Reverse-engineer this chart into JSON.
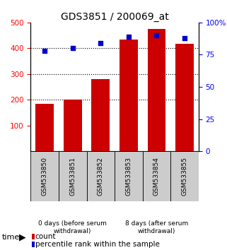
{
  "title": "GDS3851 / 200069_at",
  "samples": [
    "GSM533850",
    "GSM533851",
    "GSM533852",
    "GSM533853",
    "GSM533854",
    "GSM533855"
  ],
  "counts": [
    185,
    202,
    280,
    433,
    475,
    417
  ],
  "percentiles": [
    78,
    80,
    84,
    89,
    90,
    88
  ],
  "ylim_left": [
    0,
    500
  ],
  "ylim_right": [
    0,
    100
  ],
  "yticks_left": [
    100,
    200,
    300,
    400,
    500
  ],
  "yticks_right": [
    0,
    25,
    50,
    75,
    100
  ],
  "yticklabels_right": [
    "0",
    "25",
    "50",
    "75",
    "100%"
  ],
  "bar_color": "#cc0000",
  "dot_color": "#0000cc",
  "group1_label": "0 days (before serum\nwithdrawal)",
  "group2_label": "8 days (after serum\nwithdrawal)",
  "group1_color": "#ccffcc",
  "group2_color": "#55dd55",
  "sample_bg_color": "#cccccc",
  "time_label": "time",
  "legend_count": "count",
  "legend_pct": "percentile rank within the sample",
  "title_fontsize": 10,
  "tick_fontsize": 7.5,
  "label_fontsize": 6.5,
  "legend_fontsize": 7.5
}
